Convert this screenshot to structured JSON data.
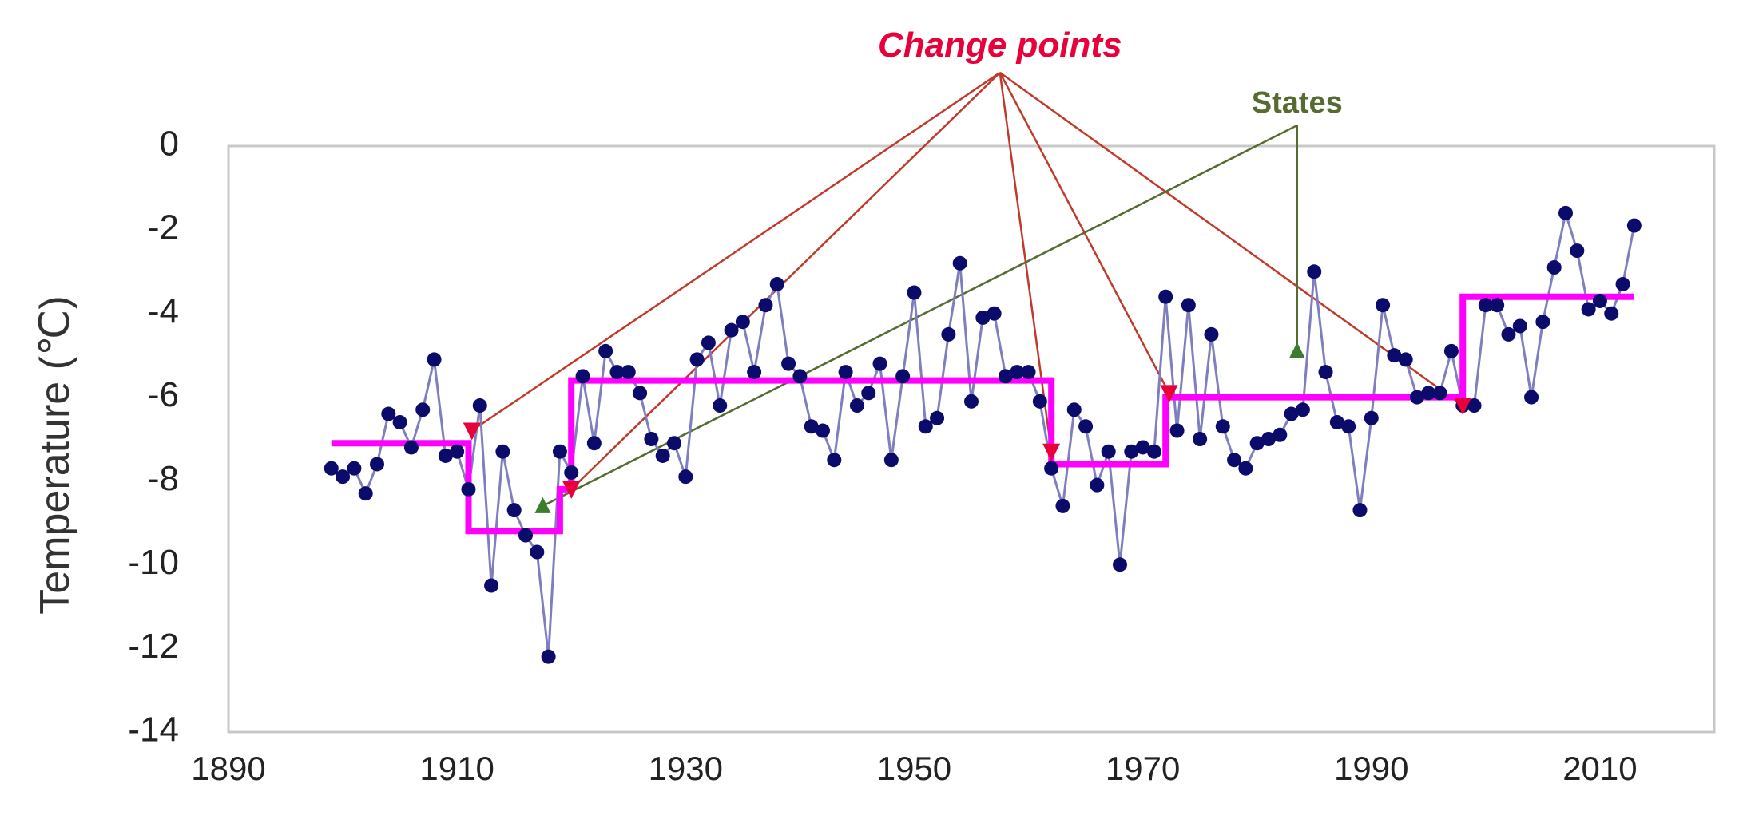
{
  "chart_data": {
    "type": "line",
    "title": "",
    "xlabel": "",
    "ylabel": "Temperature (℃)",
    "xlim": [
      1890,
      2020
    ],
    "ylim": [
      -14,
      0
    ],
    "xticks": [
      1890,
      1910,
      1930,
      1950,
      1970,
      1990,
      2010
    ],
    "yticks": [
      0,
      -2,
      -4,
      -6,
      -8,
      -10,
      -12,
      -14
    ],
    "grid": false,
    "legend": "none",
    "colors": {
      "observed_line": "#7f7fbf",
      "observed_marker": "#0b0b6b",
      "states": "#ff00ff",
      "change_points": "#e8003a",
      "change_point_callouts": "#c0392b",
      "states_callout": "#556b2f",
      "plot_border": "#c8c8c8"
    },
    "series": [
      {
        "type": "line-markers",
        "x": [
          1899,
          1900,
          1901,
          1902,
          1903,
          1904,
          1905,
          1906,
          1907,
          1908,
          1909,
          1910,
          1911,
          1912,
          1913,
          1914,
          1915,
          1916,
          1917,
          1918,
          1919,
          1920,
          1921,
          1922,
          1923,
          1924,
          1925,
          1926,
          1927,
          1928,
          1929,
          1930,
          1931,
          1932,
          1933,
          1934,
          1935,
          1936,
          1937,
          1938,
          1939,
          1940,
          1941,
          1942,
          1943,
          1944,
          1945,
          1946,
          1947,
          1948,
          1949,
          1950,
          1951,
          1952,
          1953,
          1954,
          1955,
          1956,
          1957,
          1958,
          1959,
          1960,
          1961,
          1962,
          1963,
          1964,
          1965,
          1966,
          1967,
          1968,
          1969,
          1970,
          1971,
          1972,
          1973,
          1974,
          1975,
          1976,
          1977,
          1978,
          1979,
          1980,
          1981,
          1982,
          1983,
          1984,
          1985,
          1986,
          1987,
          1988,
          1989,
          1990,
          1991,
          1992,
          1993,
          1994,
          1995,
          1996,
          1997,
          1998,
          1999,
          2000,
          2001,
          2002,
          2003,
          2004,
          2005,
          2006,
          2007,
          2008,
          2009,
          2010,
          2011,
          2012,
          2013
        ],
        "y": [
          -7.7,
          -7.9,
          -7.7,
          -8.3,
          -7.6,
          -6.4,
          -6.6,
          -7.2,
          -6.3,
          -5.1,
          -7.4,
          -7.3,
          -8.2,
          -6.2,
          -10.5,
          -7.3,
          -8.7,
          -9.3,
          -9.7,
          -12.2,
          -7.3,
          -7.8,
          -5.5,
          -7.1,
          -4.9,
          -5.4,
          -5.4,
          -5.9,
          -7.0,
          -7.4,
          -7.1,
          -7.9,
          -5.1,
          -4.7,
          -6.2,
          -4.4,
          -4.2,
          -5.4,
          -3.8,
          -3.3,
          -5.2,
          -5.5,
          -6.7,
          -6.8,
          -7.5,
          -5.4,
          -6.2,
          -5.9,
          -5.2,
          -7.5,
          -5.5,
          -3.5,
          -6.7,
          -6.5,
          -4.5,
          -2.8,
          -6.1,
          -4.1,
          -4.0,
          -5.5,
          -5.4,
          -5.4,
          -6.1,
          -7.7,
          -8.6,
          -6.3,
          -6.7,
          -8.1,
          -7.3,
          -10.0,
          -7.3,
          -7.2,
          -7.3,
          -3.6,
          -6.8,
          -3.8,
          -7.0,
          -4.5,
          -6.7,
          -7.5,
          -7.7,
          -7.1,
          -7.0,
          -6.9,
          -6.4,
          -6.3,
          -3.0,
          -5.4,
          -6.6,
          -6.7,
          -8.7,
          -6.5,
          -3.8,
          -5.0,
          -5.1,
          -6.0,
          -5.9,
          -5.9,
          -4.9,
          -6.2,
          -6.2,
          -3.8,
          -3.8,
          -4.5,
          -4.3,
          -6.0,
          -4.2,
          -2.9,
          -1.6,
          -2.5,
          -3.9,
          -3.7,
          -4.0,
          -3.3,
          -1.9
        ]
      },
      {
        "name": "States",
        "type": "step",
        "segments": [
          {
            "x": [
              1899,
              1911
            ],
            "y": -7.1
          },
          {
            "x": [
              1911,
              1919
            ],
            "y": -9.2
          },
          {
            "x": [
              1919,
              1920
            ],
            "y": -8.2
          },
          {
            "x": [
              1920,
              1962
            ],
            "y": -5.6
          },
          {
            "x": [
              1962,
              1972
            ],
            "y": -7.6
          },
          {
            "x": [
              1972,
              1998
            ],
            "y": -6.0
          },
          {
            "x": [
              1998,
              2013
            ],
            "y": -3.6
          }
        ]
      },
      {
        "name": "Change points",
        "type": "markers",
        "x": [
          1911.3,
          1920.0,
          1962.0,
          1972.3,
          1998.0
        ],
        "y": [
          -6.8,
          -8.2,
          -7.3,
          -5.9,
          -6.2
        ]
      }
    ],
    "annotations": [
      {
        "text": "Change points",
        "anchor": {
          "x": 1957.5,
          "y": 2.1
        },
        "targets": [
          {
            "x": 1911.3,
            "y": -6.8
          },
          {
            "x": 1920.0,
            "y": -8.2
          },
          {
            "x": 1962.0,
            "y": -7.3
          },
          {
            "x": 1972.3,
            "y": -5.9
          },
          {
            "x": 1998.0,
            "y": -6.2
          }
        ]
      },
      {
        "text": "States",
        "anchor": {
          "x": 1983.5,
          "y": 0.8
        },
        "targets": [
          {
            "x": 1917.5,
            "y": -8.6
          },
          {
            "x": 1983.5,
            "y": -4.9
          }
        ]
      }
    ]
  }
}
